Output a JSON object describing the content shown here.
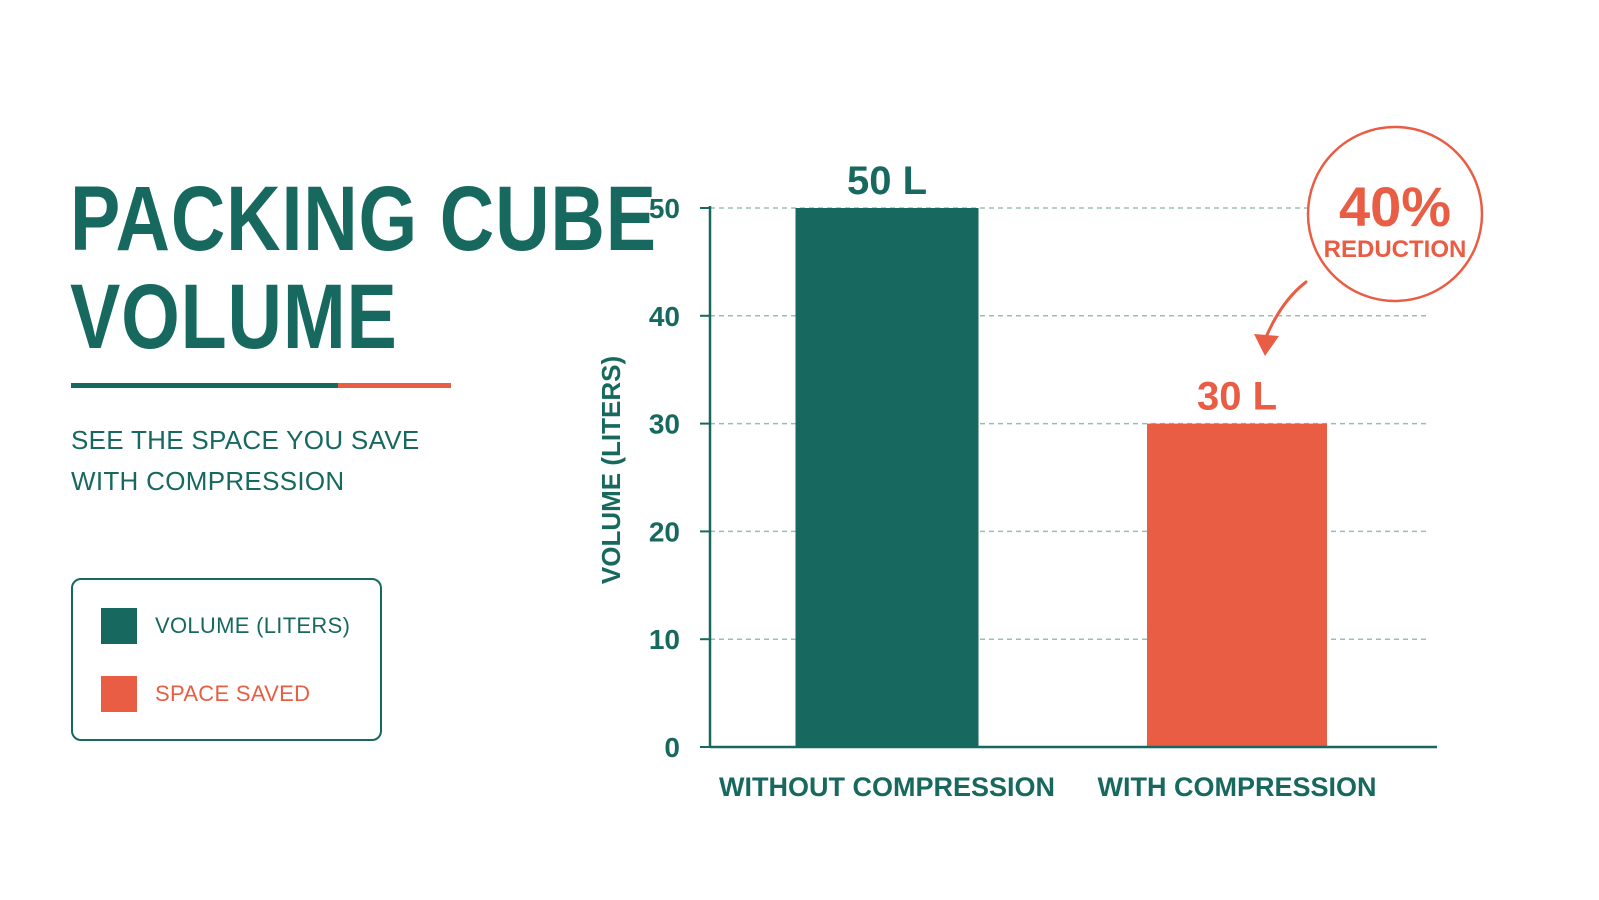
{
  "header": {
    "title_lines": [
      "PACKING CUBE",
      "VOLUME"
    ],
    "subtitle_lines": [
      "SEE THE SPACE YOU SAVE",
      "WITH COMPRESSION"
    ]
  },
  "legend": {
    "items": [
      {
        "label": "VOLUME (LITERS)",
        "color": "#17695f"
      },
      {
        "label": "SPACE SAVED",
        "color": "#e95d45"
      }
    ]
  },
  "colors": {
    "primary": "#17695f",
    "accent": "#e95d45",
    "grid": "#9bbdb7"
  },
  "chart_data": {
    "type": "bar",
    "categories": [
      "WITHOUT COMPRESSION",
      "WITH COMPRESSION"
    ],
    "values": [
      50,
      30
    ],
    "data_labels": [
      "50 L",
      "30 L"
    ],
    "bar_colors": [
      "#17695f",
      "#e95d45"
    ],
    "xlabel": "",
    "ylabel": "VOLUME (LITERS)",
    "ylim": [
      0,
      50
    ],
    "yticks": [
      0,
      10,
      20,
      30,
      40,
      50
    ],
    "grid": true,
    "annotation": {
      "value": "40%",
      "text": "REDUCTION",
      "points_to": "WITH COMPRESSION"
    }
  }
}
